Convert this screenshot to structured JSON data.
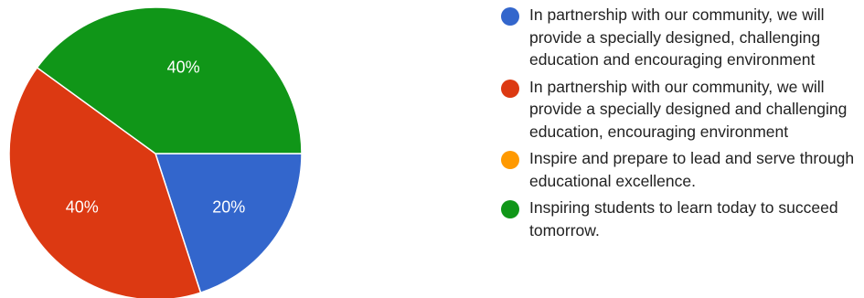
{
  "chart_data": {
    "type": "pie",
    "series": [
      {
        "name": "In partnership with our community, we will provide a specially designed, challenging education and encouraging environment",
        "value": 20,
        "color": "#3366cc",
        "label": "20%"
      },
      {
        "name": "In partnership with our community, we will provide a specially designed and challenging education, encouraging environment",
        "value": 40,
        "color": "#dc3912",
        "label": "40%"
      },
      {
        "name": "Inspire and prepare to lead and serve through educational excellence.",
        "value": 0,
        "color": "#ff9900",
        "label": ""
      },
      {
        "name": "Inspiring students to learn today to succeed tomorrow.",
        "value": 40,
        "color": "#109618",
        "label": "40%"
      }
    ],
    "legend_position": "right"
  }
}
